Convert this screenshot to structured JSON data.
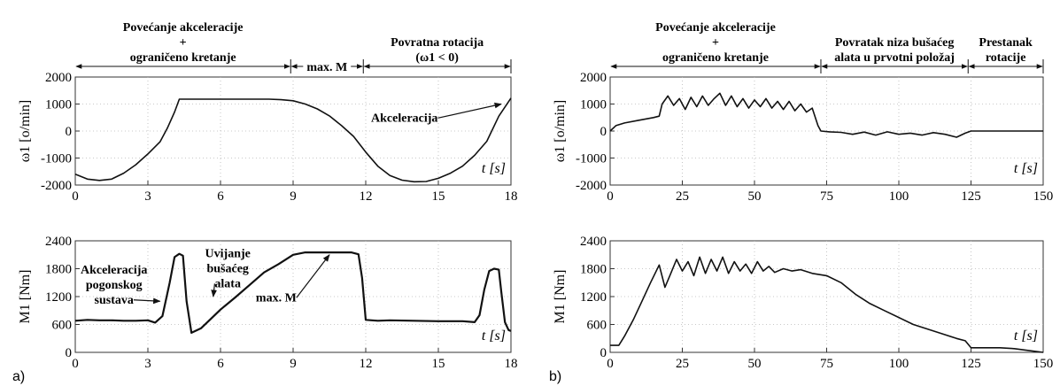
{
  "panel_labels": [
    "a)",
    "b)"
  ],
  "colors": {
    "line": "#111111",
    "axis": "#333333",
    "background": "#ffffff"
  },
  "chart_data": [
    {
      "id": "a_top",
      "type": "line",
      "xlim": [
        0,
        18
      ],
      "ylim": [
        -2000,
        2000
      ],
      "xticks": [
        "0",
        "3",
        "6",
        "9",
        "12",
        "15",
        "18"
      ],
      "yticks": [
        "2000",
        "1000",
        "0",
        "-1000",
        "-2000"
      ],
      "ylabel": "ω1 [o/min]",
      "xlabel": "t [s]",
      "phases": [
        {
          "text": [
            "Povećanje akceleracije",
            "+",
            "ograničeno kretanje"
          ],
          "from": 0,
          "to": 8.9
        },
        {
          "text": [
            "max. M"
          ],
          "from": 8.9,
          "to": 11.9
        },
        {
          "text": [
            "Povratna rotacija",
            "(ω1 < 0)"
          ],
          "from": 11.9,
          "to": 18
        }
      ],
      "annotations": [
        {
          "text": "Akceleracija",
          "x": 13.6,
          "y": 350,
          "arrow_to": [
            17.6,
            1000
          ]
        }
      ],
      "series": [
        {
          "x": [
            0,
            0.5,
            1,
            1.5,
            2,
            2.5,
            3,
            3.5,
            3.8,
            4.1,
            4.3,
            5,
            6,
            7,
            8,
            8.5,
            9,
            9.5,
            10,
            10.5,
            11,
            11.5,
            12,
            12.5,
            13,
            13.5,
            14,
            14.5,
            15,
            15.5,
            16,
            16.5,
            17,
            17.5,
            18
          ],
          "y": [
            -1600,
            -1780,
            -1830,
            -1780,
            -1560,
            -1250,
            -850,
            -400,
            100,
            700,
            1180,
            1180,
            1180,
            1180,
            1180,
            1160,
            1120,
            1000,
            820,
            560,
            200,
            -200,
            -780,
            -1300,
            -1650,
            -1820,
            -1880,
            -1870,
            -1750,
            -1560,
            -1300,
            -900,
            -380,
            550,
            1220
          ]
        }
      ]
    },
    {
      "id": "a_bottom",
      "type": "line",
      "xlim": [
        0,
        18
      ],
      "ylim": [
        0,
        2400
      ],
      "xticks": [
        "0",
        "3",
        "6",
        "9",
        "12",
        "15",
        "18"
      ],
      "yticks": [
        "2400",
        "1800",
        "1200",
        "600",
        "0"
      ],
      "ylabel": "M1 [Nm]",
      "xlabel": "t [s]",
      "annotations": [
        {
          "text": [
            "Akceleracija",
            "pogonskog",
            "sustava"
          ],
          "x": 1.6,
          "y": 1700,
          "arrow_to": [
            3.5,
            1100
          ]
        },
        {
          "text": [
            "Uvijanje",
            "bušaćeg",
            "alata"
          ],
          "x": 6.3,
          "y": 2050,
          "arrow_to": [
            5.7,
            1200
          ]
        },
        {
          "text": [
            "max. M"
          ],
          "x": 8.3,
          "y": 1100,
          "arrow_to": [
            10.5,
            2100
          ]
        }
      ],
      "series": [
        {
          "x": [
            0,
            0.5,
            1,
            1.5,
            2,
            2.5,
            3,
            3.3,
            3.6,
            3.9,
            4.1,
            4.3,
            4.45,
            4.6,
            4.8,
            5.2,
            5.6,
            6,
            6.6,
            7.2,
            7.8,
            8.4,
            9,
            9.5,
            10,
            10.5,
            11,
            11.4,
            11.7,
            11.85,
            12,
            12.5,
            13,
            14,
            15,
            16,
            16.5,
            16.7,
            16.9,
            17.1,
            17.3,
            17.5,
            17.6,
            17.75,
            17.9,
            18
          ],
          "y": [
            680,
            700,
            690,
            690,
            680,
            680,
            690,
            640,
            780,
            1500,
            2050,
            2120,
            2080,
            1100,
            420,
            520,
            720,
            920,
            1180,
            1450,
            1720,
            1900,
            2100,
            2150,
            2150,
            2150,
            2150,
            2150,
            2110,
            1600,
            700,
            680,
            690,
            680,
            670,
            670,
            650,
            800,
            1350,
            1750,
            1800,
            1780,
            1300,
            650,
            480,
            460
          ]
        }
      ]
    },
    {
      "id": "b_top",
      "type": "line",
      "xlim": [
        0,
        150
      ],
      "ylim": [
        -2000,
        2000
      ],
      "xticks": [
        "0",
        "25",
        "50",
        "75",
        "100",
        "125",
        "150"
      ],
      "yticks": [
        "2000",
        "1000",
        "0",
        "-1000",
        "-2000"
      ],
      "ylabel": "ω1 [o/min]",
      "xlabel": "t [s]",
      "phases": [
        {
          "text": [
            "Povećanje akceleracije",
            "+",
            "ograničeno kretanje"
          ],
          "from": 0,
          "to": 73
        },
        {
          "text": [
            "Povratak niza bušaćeg",
            "alata u prvotni položaj"
          ],
          "from": 73,
          "to": 124
        },
        {
          "text": [
            "Prestanak",
            "rotacije"
          ],
          "from": 124,
          "to": 150
        }
      ],
      "series": [
        {
          "x": [
            0,
            2,
            5,
            10,
            15,
            17,
            18,
            20,
            22,
            24,
            26,
            28,
            30,
            32,
            34,
            36,
            38,
            40,
            42,
            44,
            46,
            48,
            50,
            52,
            54,
            56,
            58,
            60,
            62,
            64,
            66,
            68,
            70,
            72,
            73,
            76,
            80,
            84,
            88,
            92,
            96,
            100,
            104,
            108,
            112,
            116,
            120,
            123,
            125,
            130,
            140,
            150
          ],
          "y": [
            0,
            200,
            300,
            400,
            500,
            550,
            1000,
            1300,
            950,
            1200,
            800,
            1250,
            900,
            1300,
            950,
            1200,
            1400,
            950,
            1300,
            900,
            1200,
            850,
            1150,
            900,
            1200,
            850,
            1100,
            800,
            1100,
            750,
            1000,
            700,
            850,
            200,
            0,
            -30,
            -50,
            -120,
            -40,
            -150,
            -30,
            -120,
            -80,
            -150,
            -60,
            -120,
            -230,
            -80,
            0,
            0,
            0,
            0
          ]
        }
      ]
    },
    {
      "id": "b_bottom",
      "type": "line",
      "xlim": [
        0,
        150
      ],
      "ylim": [
        0,
        2400
      ],
      "xticks": [
        "0",
        "25",
        "50",
        "75",
        "100",
        "125",
        "150"
      ],
      "yticks": [
        "2400",
        "1800",
        "1200",
        "600",
        "0"
      ],
      "ylabel": "M1 [Nm]",
      "xlabel": "t [s]",
      "series": [
        {
          "x": [
            0,
            3,
            5,
            8,
            11,
            14,
            17,
            19,
            21,
            23,
            25,
            27,
            29,
            31,
            33,
            35,
            37,
            39,
            41,
            43,
            45,
            47,
            49,
            51,
            53,
            55,
            57,
            60,
            63,
            66,
            70,
            75,
            80,
            85,
            90,
            95,
            100,
            105,
            110,
            115,
            120,
            123,
            125,
            130,
            135,
            140,
            145,
            150
          ],
          "y": [
            150,
            150,
            350,
            700,
            1100,
            1500,
            1880,
            1400,
            1700,
            2000,
            1750,
            1950,
            1650,
            2050,
            1700,
            2000,
            1750,
            2050,
            1700,
            1950,
            1750,
            1900,
            1700,
            1950,
            1750,
            1850,
            1720,
            1800,
            1750,
            1780,
            1700,
            1650,
            1500,
            1250,
            1050,
            900,
            750,
            600,
            500,
            400,
            300,
            250,
            100,
            100,
            100,
            80,
            40,
            0
          ]
        }
      ]
    }
  ]
}
